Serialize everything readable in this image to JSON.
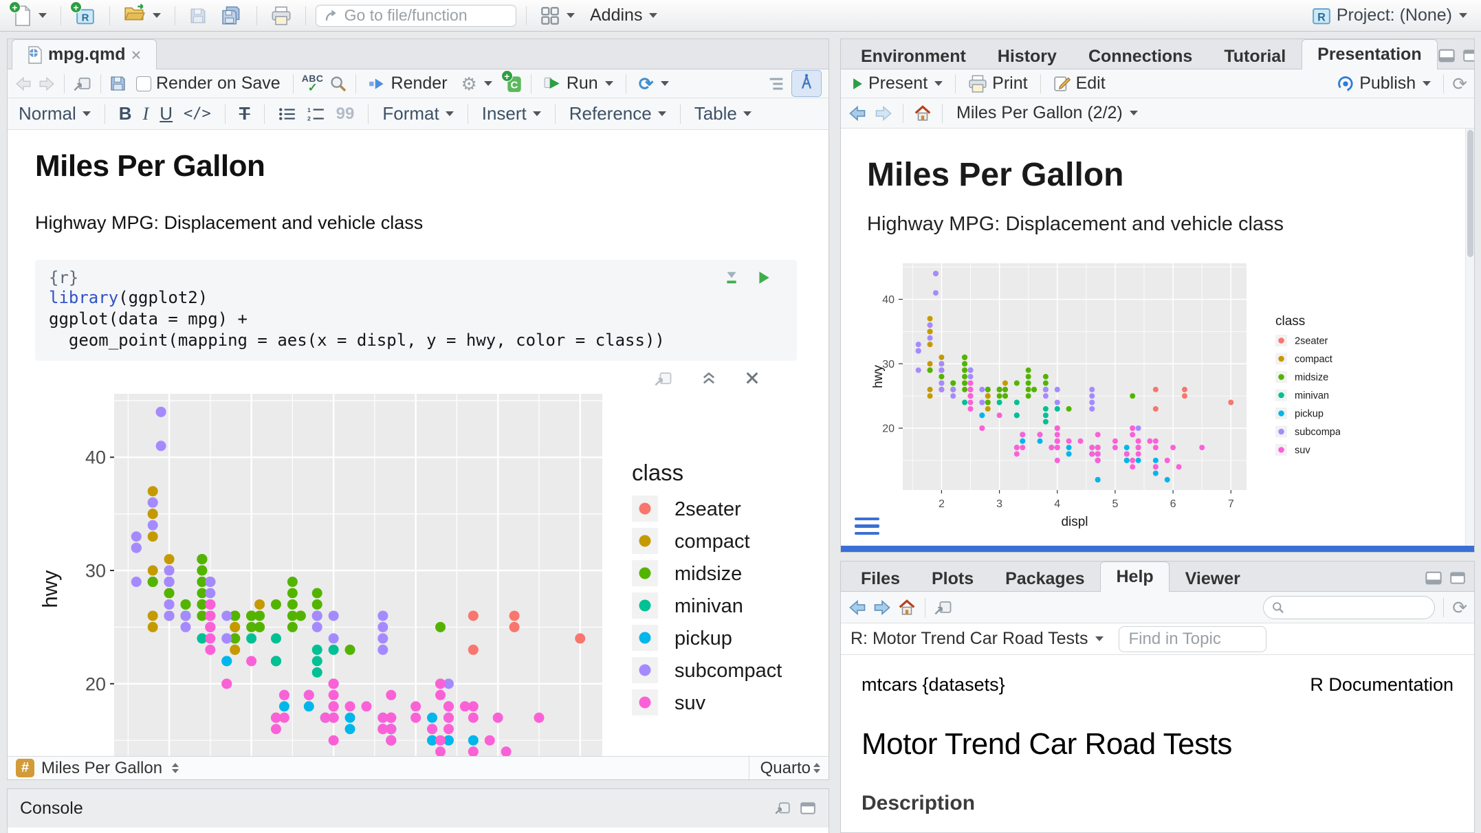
{
  "app_toolbar": {
    "goto_placeholder": "Go to file/function",
    "addins_label": "Addins",
    "project_label": "Project: (None)"
  },
  "editor": {
    "tab_label": "mpg.qmd",
    "toolbar": {
      "render_on_save": "Render on Save",
      "spellcheck": "ABC",
      "render_label": "Render",
      "run_label": "Run"
    },
    "format_bar": {
      "style": "Normal",
      "bold": "B",
      "italic": "I",
      "underline": "U",
      "code": "</>",
      "clear": "T",
      "quote": "99",
      "format": "Format",
      "insert": "Insert",
      "reference": "Reference",
      "table": "Table"
    },
    "document": {
      "title": "Miles Per Gallon",
      "subtitle": "Highway MPG: Displacement and vehicle class",
      "chunk_header": "{r}",
      "code_lines": [
        [
          {
            "text": "library",
            "cls": "tok-blue"
          },
          {
            "text": "(ggplot2)",
            "cls": ""
          }
        ],
        [
          {
            "text": "ggplot(data = mpg) +",
            "cls": ""
          }
        ],
        [
          {
            "text": "  geom_point(mapping = aes(x = displ, y = hwy, color = class))",
            "cls": ""
          }
        ]
      ]
    },
    "status_bar": {
      "section": "Miles Per Gallon",
      "mode": "Quarto"
    }
  },
  "console": {
    "title": "Console"
  },
  "presentation": {
    "tabs": [
      "Environment",
      "History",
      "Connections",
      "Tutorial",
      "Presentation"
    ],
    "toolbar": {
      "present": "Present",
      "print": "Print",
      "edit": "Edit",
      "publish": "Publish"
    },
    "nav_title": "Miles Per Gallon (2/2)",
    "slide": {
      "title": "Miles Per Gallon",
      "subtitle": "Highway MPG: Displacement and vehicle class"
    }
  },
  "help": {
    "tabs": [
      "Files",
      "Plots",
      "Packages",
      "Help",
      "Viewer"
    ],
    "topic_label": "R: Motor Trend Car Road Tests",
    "find_placeholder": "Find in Topic",
    "header_left": "mtcars {datasets}",
    "header_right": "R Documentation",
    "page_title": "Motor Trend Car Road Tests",
    "section_heading": "Description"
  },
  "colors": {
    "accent_blue": "#4179c4",
    "divider_blue": "#3a70d3",
    "run_green": "#2e9e44",
    "panel_gray": "#ebebeb"
  },
  "chart_data": {
    "type": "scatter",
    "xlabel": "displ",
    "ylabel": "hwy",
    "legend_title": "class",
    "legend_position": "right",
    "x_ticks": [
      2,
      3,
      4,
      5,
      6,
      7
    ],
    "y_ticks": [
      20,
      30,
      40
    ],
    "x_range": [
      1.33,
      7.27
    ],
    "y_range": [
      10.4,
      45.6
    ],
    "grid": true,
    "classes": [
      "2seater",
      "compact",
      "midsize",
      "minivan",
      "pickup",
      "subcompact",
      "suv"
    ],
    "colors": [
      "#F8766D",
      "#C49A00",
      "#53B400",
      "#00C094",
      "#00B6EB",
      "#A58AFF",
      "#FB61D7"
    ],
    "points": [
      [
        1.8,
        29,
        1
      ],
      [
        1.8,
        29,
        1
      ],
      [
        2.0,
        31,
        1
      ],
      [
        2.0,
        30,
        1
      ],
      [
        2.8,
        26,
        1
      ],
      [
        2.8,
        26,
        1
      ],
      [
        3.1,
        27,
        1
      ],
      [
        1.8,
        26,
        1
      ],
      [
        1.8,
        25,
        1
      ],
      [
        2.0,
        28,
        1
      ],
      [
        2.0,
        27,
        1
      ],
      [
        2.8,
        25,
        1
      ],
      [
        2.8,
        25,
        1
      ],
      [
        3.1,
        25,
        1
      ],
      [
        3.1,
        25,
        1
      ],
      [
        1.8,
        30,
        1
      ],
      [
        1.8,
        33,
        1
      ],
      [
        1.8,
        35,
        1
      ],
      [
        1.8,
        37,
        1
      ],
      [
        1.8,
        35,
        1
      ],
      [
        2.0,
        29,
        1
      ],
      [
        2.0,
        29,
        1
      ],
      [
        2.0,
        26,
        1
      ],
      [
        2.0,
        29,
        1
      ],
      [
        2.8,
        24,
        1
      ],
      [
        1.9,
        44,
        1
      ],
      [
        2.0,
        29,
        1
      ],
      [
        2.0,
        26,
        1
      ],
      [
        2.0,
        29,
        1
      ],
      [
        2.0,
        29,
        1
      ],
      [
        2.5,
        29,
        1
      ],
      [
        2.8,
        23,
        1
      ],
      [
        2.8,
        24,
        1
      ],
      [
        2.8,
        24,
        2
      ],
      [
        3.1,
        25,
        2
      ],
      [
        4.2,
        23,
        2
      ],
      [
        2.4,
        27,
        2
      ],
      [
        2.4,
        30,
        2
      ],
      [
        3.1,
        26,
        2
      ],
      [
        3.5,
        29,
        2
      ],
      [
        3.6,
        26,
        2
      ],
      [
        2.4,
        26,
        2
      ],
      [
        2.4,
        27,
        2
      ],
      [
        2.4,
        30,
        2
      ],
      [
        2.4,
        31,
        2
      ],
      [
        2.5,
        26,
        2
      ],
      [
        2.5,
        29,
        2
      ],
      [
        2.4,
        29,
        2
      ],
      [
        2.4,
        31,
        2
      ],
      [
        2.5,
        27,
        2
      ],
      [
        2.5,
        26,
        2
      ],
      [
        3.5,
        26,
        2
      ],
      [
        3.5,
        27,
        2
      ],
      [
        3.0,
        26,
        2
      ],
      [
        3.0,
        25,
        2
      ],
      [
        3.5,
        25,
        2
      ],
      [
        3.1,
        26,
        2
      ],
      [
        3.8,
        26,
        2
      ],
      [
        3.8,
        27,
        2
      ],
      [
        3.8,
        28,
        2
      ],
      [
        5.3,
        25,
        2
      ],
      [
        2.2,
        26,
        2
      ],
      [
        2.2,
        27,
        2
      ],
      [
        2.4,
        28,
        2
      ],
      [
        2.4,
        31,
        2
      ],
      [
        3.0,
        26,
        2
      ],
      [
        3.0,
        26,
        2
      ],
      [
        3.5,
        28,
        2
      ],
      [
        2.2,
        26,
        2
      ],
      [
        2.2,
        27,
        2
      ],
      [
        2.4,
        29,
        2
      ],
      [
        2.4,
        31,
        2
      ],
      [
        3.0,
        26,
        2
      ],
      [
        3.3,
        27,
        2
      ],
      [
        1.8,
        29,
        2
      ],
      [
        1.8,
        29,
        2
      ],
      [
        2.0,
        28,
        2
      ],
      [
        2.0,
        29,
        2
      ],
      [
        2.8,
        26,
        2
      ],
      [
        2.8,
        26,
        2
      ],
      [
        3.6,
        26,
        2
      ],
      [
        2.4,
        24,
        3
      ],
      [
        3.0,
        24,
        3
      ],
      [
        3.3,
        22,
        3
      ],
      [
        3.3,
        22,
        3
      ],
      [
        3.3,
        24,
        3
      ],
      [
        3.3,
        22,
        3
      ],
      [
        3.3,
        17,
        3
      ],
      [
        3.8,
        22,
        3
      ],
      [
        3.8,
        21,
        3
      ],
      [
        3.8,
        23,
        3
      ],
      [
        4.0,
        23,
        3
      ],
      [
        3.7,
        19,
        4
      ],
      [
        3.7,
        18,
        4
      ],
      [
        3.9,
        17,
        4
      ],
      [
        3.9,
        17,
        4
      ],
      [
        4.7,
        16,
        4
      ],
      [
        4.7,
        16,
        4
      ],
      [
        4.7,
        15,
        4
      ],
      [
        5.2,
        17,
        4
      ],
      [
        5.2,
        15,
        4
      ],
      [
        4.7,
        15,
        4
      ],
      [
        4.7,
        16,
        4
      ],
      [
        4.7,
        16,
        4
      ],
      [
        4.7,
        15,
        4
      ],
      [
        4.7,
        12,
        4
      ],
      [
        4.7,
        12,
        4
      ],
      [
        5.2,
        16,
        4
      ],
      [
        5.2,
        15,
        4
      ],
      [
        5.7,
        13,
        4
      ],
      [
        5.9,
        12,
        4
      ],
      [
        4.2,
        17,
        4
      ],
      [
        4.2,
        16,
        4
      ],
      [
        4.6,
        16,
        4
      ],
      [
        4.6,
        17,
        4
      ],
      [
        4.6,
        16,
        4
      ],
      [
        5.4,
        15,
        4
      ],
      [
        5.4,
        17,
        4
      ],
      [
        2.7,
        22,
        4
      ],
      [
        2.7,
        22,
        4
      ],
      [
        3.4,
        19,
        4
      ],
      [
        3.4,
        18,
        4
      ],
      [
        4.0,
        20,
        4
      ],
      [
        4.0,
        18,
        4
      ],
      [
        4.7,
        17,
        4
      ],
      [
        4.7,
        16,
        4
      ],
      [
        4.7,
        16,
        4
      ],
      [
        5.7,
        15,
        4
      ],
      [
        3.8,
        26,
        5
      ],
      [
        3.8,
        25,
        5
      ],
      [
        4.0,
        26,
        5
      ],
      [
        4.0,
        24,
        5
      ],
      [
        4.6,
        25,
        5
      ],
      [
        4.6,
        24,
        5
      ],
      [
        4.6,
        26,
        5
      ],
      [
        4.6,
        23,
        5
      ],
      [
        5.4,
        20,
        5
      ],
      [
        1.6,
        33,
        5
      ],
      [
        1.6,
        32,
        5
      ],
      [
        1.6,
        32,
        5
      ],
      [
        1.6,
        29,
        5
      ],
      [
        1.6,
        32,
        5
      ],
      [
        1.8,
        34,
        5
      ],
      [
        1.8,
        36,
        5
      ],
      [
        1.8,
        36,
        5
      ],
      [
        2.0,
        29,
        5
      ],
      [
        2.0,
        26,
        5
      ],
      [
        2.0,
        27,
        5
      ],
      [
        2.0,
        30,
        5
      ],
      [
        2.0,
        29,
        5
      ],
      [
        2.7,
        26,
        5
      ],
      [
        2.7,
        24,
        5
      ],
      [
        2.7,
        24,
        5
      ],
      [
        2.2,
        26,
        5
      ],
      [
        2.2,
        25,
        5
      ],
      [
        2.5,
        25,
        5
      ],
      [
        2.5,
        25,
        5
      ],
      [
        2.5,
        26,
        5
      ],
      [
        2.5,
        27,
        5
      ],
      [
        1.9,
        44,
        5
      ],
      [
        1.9,
        41,
        5
      ],
      [
        2.0,
        29,
        5
      ],
      [
        2.0,
        26,
        5
      ],
      [
        2.5,
        28,
        5
      ],
      [
        2.5,
        29,
        5
      ],
      [
        5.3,
        20,
        6
      ],
      [
        5.3,
        15,
        6
      ],
      [
        5.3,
        20,
        6
      ],
      [
        5.7,
        17,
        6
      ],
      [
        6.0,
        17,
        6
      ],
      [
        5.3,
        14,
        6
      ],
      [
        5.3,
        19,
        6
      ],
      [
        5.7,
        14,
        6
      ],
      [
        6.5,
        17,
        6
      ],
      [
        3.9,
        17,
        6
      ],
      [
        4.7,
        17,
        6
      ],
      [
        4.7,
        16,
        6
      ],
      [
        4.7,
        16,
        6
      ],
      [
        4.7,
        15,
        6
      ],
      [
        5.2,
        16,
        6
      ],
      [
        5.9,
        15,
        6
      ],
      [
        4.6,
        17,
        6
      ],
      [
        5.4,
        17,
        6
      ],
      [
        5.4,
        18,
        6
      ],
      [
        4.0,
        17,
        6
      ],
      [
        4.0,
        17,
        6
      ],
      [
        4.0,
        18,
        6
      ],
      [
        4.0,
        17,
        6
      ],
      [
        4.6,
        16,
        6
      ],
      [
        5.0,
        18,
        6
      ],
      [
        3.0,
        22,
        6
      ],
      [
        3.7,
        19,
        6
      ],
      [
        4.0,
        20,
        6
      ],
      [
        4.7,
        17,
        6
      ],
      [
        4.7,
        15,
        6
      ],
      [
        4.7,
        19,
        6
      ],
      [
        5.7,
        14,
        6
      ],
      [
        6.1,
        14,
        6
      ],
      [
        4.0,
        15,
        6
      ],
      [
        4.2,
        18,
        6
      ],
      [
        4.4,
        18,
        6
      ],
      [
        4.6,
        16,
        6
      ],
      [
        5.4,
        17,
        6
      ],
      [
        5.4,
        16,
        6
      ],
      [
        5.4,
        18,
        6
      ],
      [
        4.0,
        17,
        6
      ],
      [
        4.0,
        19,
        6
      ],
      [
        4.6,
        16,
        6
      ],
      [
        5.0,
        17,
        6
      ],
      [
        3.3,
        17,
        6
      ],
      [
        3.3,
        16,
        6
      ],
      [
        4.0,
        18,
        6
      ],
      [
        5.6,
        18,
        6
      ],
      [
        2.5,
        25,
        6
      ],
      [
        2.5,
        24,
        6
      ],
      [
        2.5,
        27,
        6
      ],
      [
        2.5,
        25,
        6
      ],
      [
        2.5,
        26,
        6
      ],
      [
        2.5,
        23,
        6
      ],
      [
        2.7,
        20,
        6
      ],
      [
        2.7,
        20,
        6
      ],
      [
        3.4,
        19,
        6
      ],
      [
        3.4,
        17,
        6
      ],
      [
        4.0,
        20,
        6
      ],
      [
        4.7,
        17,
        6
      ],
      [
        4.7,
        17,
        6
      ],
      [
        5.7,
        18,
        6
      ],
      [
        5.7,
        26,
        0
      ],
      [
        5.7,
        23,
        0
      ],
      [
        6.2,
        26,
        0
      ],
      [
        6.2,
        25,
        0
      ],
      [
        7.0,
        24,
        0
      ]
    ]
  }
}
